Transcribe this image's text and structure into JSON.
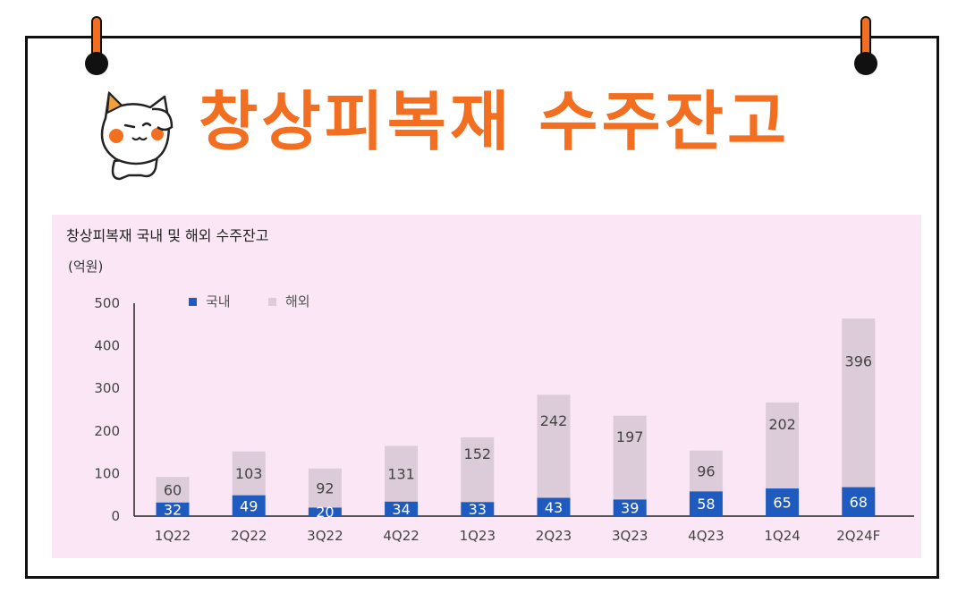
{
  "banner": {
    "title": "창상피복재 수주잔고"
  },
  "colors": {
    "accent": "#f26f21",
    "domestic": "#1f5bbf",
    "overseas": "#dccbd8",
    "panel": "#fbe6f6"
  },
  "chart_data": {
    "type": "bar",
    "stacked": true,
    "title": "창상피복재 국내 및 해외 수주잔고",
    "ylabel": "(억원)",
    "xlabel": "",
    "ylim": [
      0,
      500
    ],
    "yticks": [
      0,
      100,
      200,
      300,
      400,
      500
    ],
    "grid": false,
    "legend_position": "top-left",
    "categories": [
      "1Q22",
      "2Q22",
      "3Q22",
      "4Q22",
      "1Q23",
      "2Q23",
      "3Q23",
      "4Q23",
      "1Q24",
      "2Q24F"
    ],
    "series": [
      {
        "name": "국내",
        "color": "#1f5bbf",
        "values": [
          32,
          49,
          20,
          34,
          33,
          43,
          39,
          58,
          65,
          68
        ]
      },
      {
        "name": "해외",
        "color": "#dccbd8",
        "values": [
          60,
          103,
          92,
          131,
          152,
          242,
          197,
          96,
          202,
          396
        ]
      }
    ]
  }
}
